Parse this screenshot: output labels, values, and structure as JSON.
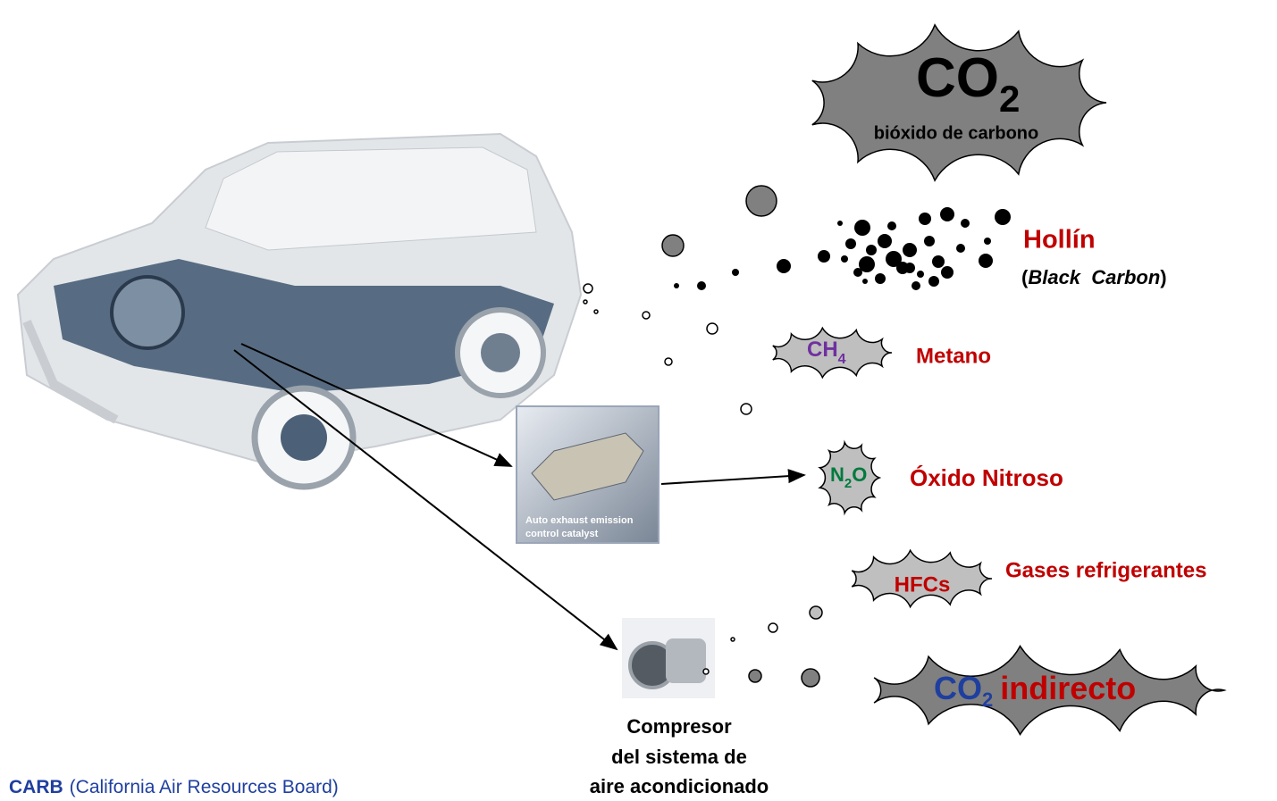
{
  "co2": {
    "formula": "CO",
    "sub": "2",
    "label": "bióxido de carbono"
  },
  "soot": {
    "label": "Hollín",
    "open": "(",
    "note": "Black  Carbon",
    "close": ")"
  },
  "methane": {
    "formula": "CH",
    "sub": "4",
    "label": "Metano"
  },
  "nitrous": {
    "formula_a": "N",
    "sub": "2",
    "formula_b": "O",
    "label": "Óxido Nitroso"
  },
  "refrigerants": {
    "formula": "HFCs",
    "label": "Gases refrigerantes"
  },
  "indirect": {
    "formula": "CO",
    "sub": "2",
    "label": "indirecto"
  },
  "catalyst": {
    "caption": [
      "Auto exhaust emission",
      "control catalyst"
    ]
  },
  "compressor": {
    "label": [
      "Compresor",
      "del sistema de",
      "aire acondicionado"
    ]
  },
  "source": {
    "acronym": "CARB",
    "name": "(California Air Resources Board)"
  }
}
